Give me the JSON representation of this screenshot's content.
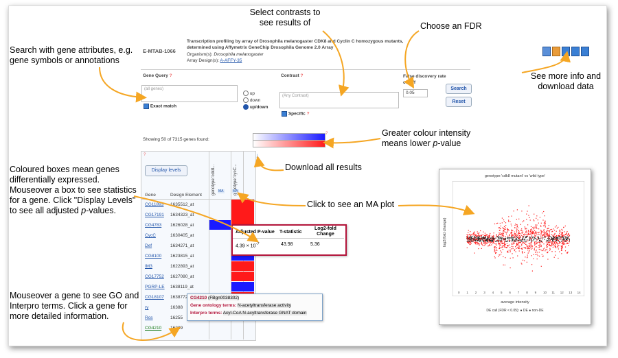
{
  "experiment": {
    "accession": "E-MTAB-1066",
    "title": "Transcription profiling by array of Drosophila melanogaster CDK8 and Cyclin C homozygous mutants, determined using Affymetrix GeneChip Drosophila Genome 2.0 Array",
    "organism_label": "Organism(s):",
    "organism_value": "Drosophila melanogaster",
    "array_label": "Array Design(s):",
    "array_value": "A-AFFY-35"
  },
  "form": {
    "gene_query_label": "Gene Query",
    "help_mark": "?",
    "gene_placeholder": "(all genes)",
    "exact_match_label": "Exact match",
    "direction_up": "up",
    "direction_down": "down",
    "direction_updown": "up/down",
    "contrast_label": "Contrast",
    "contrast_placeholder": "(Any Contrast)",
    "specific_label": "Specific",
    "fdr_label_1": "False discovery rate",
    "fdr_label_2": "cutoff",
    "fdr_value": "0.05",
    "search_button": "Search",
    "reset_button": "Reset"
  },
  "results": {
    "showing_text": "Showing 50 of 7315 genes found:",
    "display_levels_button": "Display levels",
    "col_gene": "Gene",
    "col_design_element": "Design Element",
    "contrast_1": "genotype:'cdk8...",
    "contrast_2": "genotype:'cycC...",
    "ma_label": "MA",
    "download_icon_title": "download",
    "rows": [
      {
        "gene": "CG11893",
        "de": "1635512_at"
      },
      {
        "gene": "CG17191",
        "de": "1634323_at"
      },
      {
        "gene": "CG4783",
        "de": "1626028_at"
      },
      {
        "gene": "CycC",
        "de": "1630405_at"
      },
      {
        "gene": "Def",
        "de": "1634271_at"
      },
      {
        "gene": "CG8100",
        "de": "1623815_at"
      },
      {
        "gene": "IM3",
        "de": "1622893_at"
      },
      {
        "gene": "CG17752",
        "de": "1627080_at"
      },
      {
        "gene": "PGRP-LE",
        "de": "1638119_at"
      },
      {
        "gene": "CG18107",
        "de": "1638772_at"
      },
      {
        "gene": "ry",
        "de": "16388"
      },
      {
        "gene": "Ros",
        "de": "16255"
      },
      {
        "gene": "CG4210",
        "de": "16289"
      }
    ]
  },
  "stats_popup": {
    "col_p": "Adjusted P-value",
    "col_t": "T-statistic",
    "col_fc_1": "Log2-fold",
    "col_fc_2": "Change",
    "p_value": "4.39 × 10",
    "p_exp": "-7",
    "t_value": "43.98",
    "fc_value": "5.36"
  },
  "gene_tooltip": {
    "gene": "CG4210",
    "id": "(FBgn0038302)",
    "go_label": "Gene ontology terms:",
    "go_value": "N-acetyltransferase activity",
    "ipr_label": "Interpro terms:",
    "ipr_value": "Acyl-CoA N-acyltransferase GNAT domain"
  },
  "ma_plot": {
    "title": "genotype:'cdk8 mutant' vs 'wild type'",
    "ylabel": "log2(fold change)",
    "xlabel": "average intensity",
    "legend": "DE call (FDR < 0.05): ● DE ● non-DE",
    "xticks": [
      "0",
      "1",
      "2",
      "3",
      "4",
      "5",
      "6",
      "7",
      "8",
      "9",
      "10",
      "11",
      "12",
      "13",
      "14"
    ]
  },
  "annotations": {
    "search": "Search with gene attributes, e.g. gene symbols or annotations",
    "contrasts": "Select contrasts to see results of",
    "fdr": "Choose an FDR",
    "info": "See more info and download data",
    "colour": "Greater colour intensity means lower",
    "colour_p": "p",
    "colour_end": "-value",
    "download": "Download all results",
    "boxes_1": "Coloured boxes mean genes differentially expressed.",
    "boxes_2": "Mouseover a box to see statistics for a gene.",
    "boxes_3": "Click \"Display Levels\" to see all adjusted",
    "boxes_p": "p",
    "boxes_end": "-values.",
    "ma": "Click to see an MA plot",
    "mouseover": "Mouseover a gene to see GO and Interpro terms. Click a gene for more detailed information."
  },
  "colors": {
    "red": "#ff1a1a",
    "blue": "#1a1aff",
    "arrow": "#f5a623",
    "link": "#2255aa"
  }
}
